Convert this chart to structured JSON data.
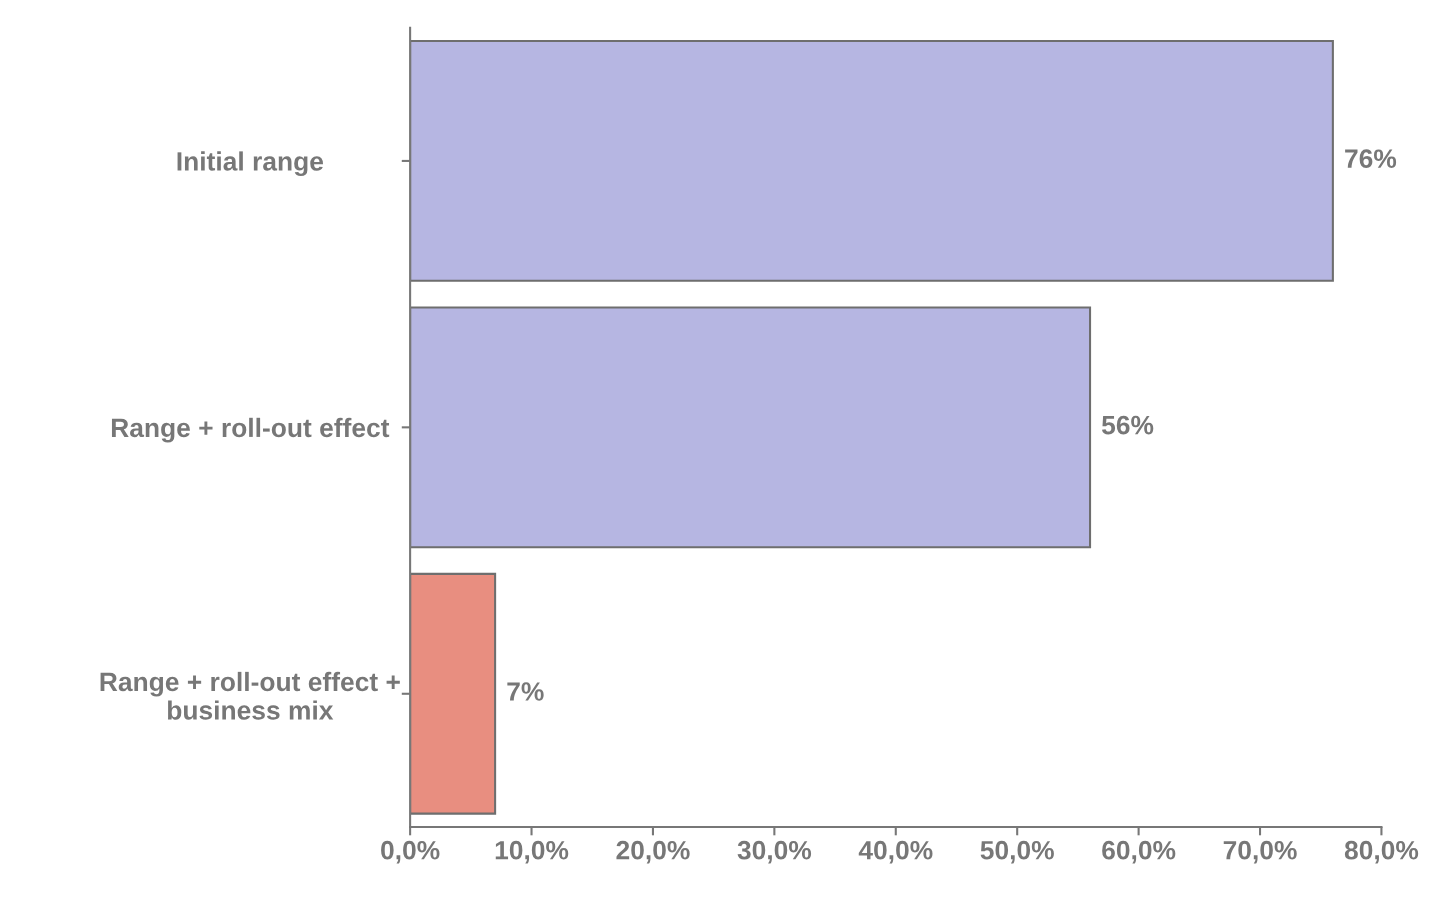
{
  "chart_data": {
    "type": "bar",
    "orientation": "horizontal",
    "categories": [
      "Initial range",
      "Range + roll-out effect",
      "Range + roll-out effect +\nbusiness mix"
    ],
    "values": [
      76,
      56,
      7
    ],
    "colors": [
      "#b6b6e2",
      "#b6b6e2",
      "#e88e80"
    ],
    "value_labels": [
      "76%",
      "56%",
      "7%"
    ],
    "xlim": [
      0,
      80
    ],
    "xticks": [
      {
        "value": 0,
        "label": "0,0%"
      },
      {
        "value": 10,
        "label": "10,0%"
      },
      {
        "value": 20,
        "label": "20,0%"
      },
      {
        "value": 30,
        "label": "30,0%"
      },
      {
        "value": 40,
        "label": "40,0%"
      },
      {
        "value": 50,
        "label": "50,0%"
      },
      {
        "value": 60,
        "label": "60,0%"
      },
      {
        "value": 70,
        "label": "70,0%"
      },
      {
        "value": 80,
        "label": "80,0%"
      }
    ],
    "grid": false
  }
}
